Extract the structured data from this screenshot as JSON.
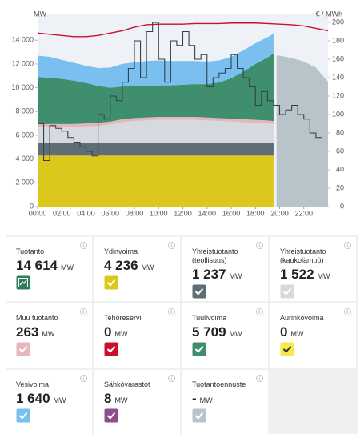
{
  "chart_data": {
    "type": "stacked-area",
    "y_unit": "MW",
    "y2_unit": "€ / MWh",
    "x": [
      0,
      1,
      2,
      3,
      4,
      5,
      6,
      7,
      8,
      9,
      10,
      11,
      12,
      13,
      14,
      15,
      16,
      17,
      18,
      19,
      19.5
    ],
    "xlim": [
      0,
      24
    ],
    "xticks": [
      {
        "value": 0,
        "label": "00:00"
      },
      {
        "value": 2,
        "label": "02:00"
      },
      {
        "value": 4,
        "label": "04:00"
      },
      {
        "value": 6,
        "label": "06:00"
      },
      {
        "value": 8,
        "label": "08:00"
      },
      {
        "value": 10,
        "label": "10:00"
      },
      {
        "value": 12,
        "label": "12:00"
      },
      {
        "value": 14,
        "label": "14:00"
      },
      {
        "value": 16,
        "label": "16:00"
      },
      {
        "value": 18,
        "label": "18:00"
      },
      {
        "value": 20,
        "label": "20:00"
      },
      {
        "value": 22,
        "label": "22:00"
      }
    ],
    "ylim": [
      0,
      15500
    ],
    "yticks": [
      0,
      {
        "value": 2000,
        "label": "2 000"
      },
      {
        "value": 4000,
        "label": "4 000"
      },
      {
        "value": 6000,
        "label": "6 000"
      },
      {
        "value": 8000,
        "label": "8 000"
      },
      {
        "value": 10000,
        "label": "10 000"
      },
      {
        "value": 12000,
        "label": "12 000"
      },
      {
        "value": 14000,
        "label": "14 000"
      }
    ],
    "y2lim": [
      0,
      200
    ],
    "y2ticks": [
      0,
      20,
      40,
      60,
      80,
      100,
      120,
      140,
      160,
      180,
      200
    ],
    "series": [
      {
        "color": "#dcc81c",
        "values": [
          4300,
          4300,
          4300,
          4300,
          4300,
          4300,
          4300,
          4300,
          4300,
          4300,
          4300,
          4300,
          4300,
          4300,
          4300,
          4300,
          4300,
          4300,
          4300,
          4300,
          4300
        ]
      },
      {
        "color": "#5f6d75",
        "values": [
          1100,
          1100,
          1100,
          1100,
          1100,
          1100,
          1100,
          1100,
          1100,
          1100,
          1100,
          1100,
          1100,
          1100,
          1100,
          1100,
          1100,
          1100,
          1100,
          1100,
          1100
        ]
      },
      {
        "color": "#d6dade",
        "values": [
          1300,
          1300,
          1300,
          1300,
          1350,
          1400,
          1500,
          1700,
          1800,
          1850,
          1900,
          1900,
          1900,
          1900,
          1850,
          1800,
          1750,
          1700,
          1650,
          1600,
          1550
        ]
      },
      {
        "color": "#e7b6bd",
        "values": [
          250,
          250,
          250,
          250,
          250,
          250,
          250,
          250,
          250,
          250,
          250,
          250,
          250,
          250,
          250,
          250,
          250,
          250,
          250,
          250,
          250
        ]
      },
      {
        "color": "#3f8f6e",
        "values": [
          3950,
          3900,
          3800,
          3650,
          3400,
          3100,
          2850,
          2750,
          2700,
          2650,
          2650,
          2650,
          2700,
          2750,
          2800,
          3000,
          3400,
          4000,
          4700,
          5300,
          5700
        ]
      },
      {
        "color": "#79c0f0",
        "values": [
          1800,
          1750,
          1600,
          1500,
          1450,
          1500,
          1700,
          1900,
          2000,
          2100,
          2100,
          2050,
          2000,
          1950,
          1900,
          1850,
          1800,
          1800,
          1750,
          1700,
          1640
        ]
      }
    ],
    "forecast": {
      "color": "#b9c3ca",
      "x": [
        19.75,
        20,
        21,
        22,
        23,
        24
      ],
      "values": [
        12700,
        12700,
        12500,
        12200,
        11700,
        10500
      ]
    },
    "lines": [
      {
        "color": "#c8102e",
        "x": [
          0,
          1,
          2,
          3,
          4,
          5,
          6,
          7,
          8,
          9,
          10,
          11,
          12,
          13,
          14,
          15,
          16,
          17,
          18,
          19,
          20,
          21,
          22,
          23,
          24
        ],
        "values": [
          14600,
          14500,
          14400,
          14300,
          14300,
          14400,
          14600,
          14800,
          15100,
          15300,
          15350,
          15350,
          15350,
          15400,
          15400,
          15400,
          15450,
          15450,
          15450,
          15400,
          15350,
          15300,
          15200,
          15000,
          14800
        ]
      },
      {
        "color": "#33404a",
        "axis": "y2",
        "x": [
          0,
          0.5,
          1,
          1.5,
          2,
          2.5,
          3,
          3.5,
          4,
          4.5,
          5,
          5.5,
          6,
          6.5,
          7,
          7.5,
          8,
          8.5,
          9,
          9.5,
          10,
          10.5,
          11,
          11.5,
          12,
          12.5,
          13,
          13.5,
          14,
          14.5,
          15,
          15.5,
          16,
          16.5,
          17,
          17.5,
          18,
          18.5,
          19,
          19.5,
          20,
          20.5,
          21,
          21.5,
          22,
          22.5,
          23,
          23.5
        ],
        "values": [
          90,
          50,
          88,
          85,
          82,
          75,
          70,
          65,
          60,
          55,
          100,
          95,
          120,
          115,
          135,
          150,
          180,
          140,
          190,
          200,
          160,
          135,
          180,
          175,
          190,
          175,
          160,
          165,
          130,
          140,
          145,
          150,
          165,
          150,
          140,
          130,
          110,
          125,
          115,
          110,
          100,
          105,
          110,
          100,
          95,
          80,
          75,
          75
        ]
      }
    ]
  },
  "cards": [
    {
      "label": "Tuotanto",
      "value": "14 614",
      "unit": "MW",
      "color": "#2e7d5b",
      "icon": "chart"
    },
    {
      "label": "Ydinvoima",
      "value": "4 236",
      "unit": "MW",
      "color": "#dcc81c"
    },
    {
      "label": "Yhteistuotanto (teollisuus)",
      "value": "1 237",
      "unit": "MW",
      "color": "#5f6d75"
    },
    {
      "label": "Yhteistuotanto (kaukolämpö)",
      "value": "1 522",
      "unit": "MW",
      "color": "#d6dade"
    },
    {
      "label": "Muu tuotanto",
      "value": "263",
      "unit": "MW",
      "color": "#e7b6bd"
    },
    {
      "label": "Tehoreservi",
      "value": "0",
      "unit": "MW",
      "color": "#c8102e"
    },
    {
      "label": "Tuulivoima",
      "value": "5 709",
      "unit": "MW",
      "color": "#3f8f6e"
    },
    {
      "label": "Aurinkovoima",
      "value": "0",
      "unit": "MW",
      "color": "#f3e94a",
      "dark": true
    },
    {
      "label": "Vesivoima",
      "value": "1 640",
      "unit": "MW",
      "color": "#79c0f0"
    },
    {
      "label": "Sähkövarastot",
      "value": "8",
      "unit": "MW",
      "color": "#8e4d8c"
    },
    {
      "label": "Tuotantoennuste",
      "value": "-",
      "unit": "MW",
      "color": "#b9c3ca"
    }
  ]
}
